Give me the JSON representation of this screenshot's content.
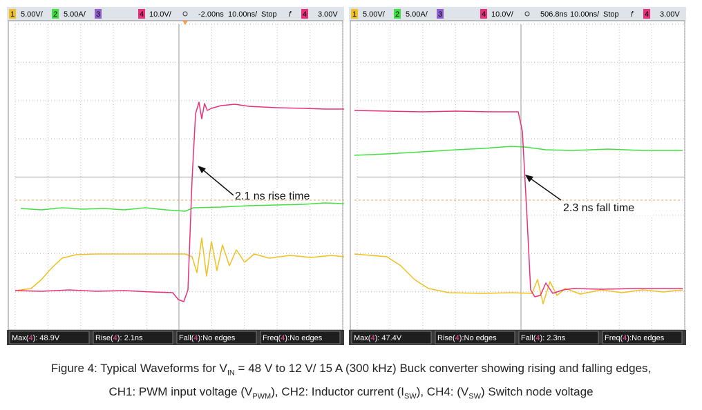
{
  "figure": {
    "panels": [
      {
        "header": [
          "1",
          "5.00V/",
          "2",
          "5.00A/",
          "3",
          "4",
          "10.0V/",
          "-2.00ns",
          "10.00ns/",
          "Stop",
          "f",
          "4",
          "3.00V"
        ],
        "measurements": [
          [
            "Max(",
            "4",
            "): 48.9V"
          ],
          [
            "Rise(",
            "4",
            "): 2.1ns"
          ],
          [
            "Fall(",
            "4",
            "):No edges"
          ],
          [
            "Freq(",
            "4",
            "):No edges"
          ]
        ],
        "annotation": "2.1 ns rise time"
      },
      {
        "header": [
          "1",
          "5.00V/",
          "2",
          "5.00A/",
          "3",
          "4",
          "10.0V/",
          "506.8ns",
          "10.00ns/",
          "Stop",
          "f",
          "4",
          "3.00V"
        ],
        "measurements": [
          [
            "Max(",
            "4",
            "): 47.4V"
          ],
          [
            "Rise(",
            "4",
            "):No edges"
          ],
          [
            "Fall(",
            "4",
            "): 2.3ns"
          ],
          [
            "Freq(",
            "4",
            "):No edges"
          ]
        ],
        "annotation": "2.3 ns fall time"
      }
    ],
    "caption": {
      "lines": [
        [
          "Figure 4: Typical Waveforms for V",
          "IN",
          " = 48 V to 12 V/ 15 A (300 kHz) Buck converter showing rising and falling edges,"
        ],
        [
          "CH1: PWM input voltage (V",
          "PWM",
          "), CH2: Inductor current (I",
          "SW",
          "), CH4: (V",
          "SW",
          ") Switch node voltage"
        ]
      ]
    }
  }
}
